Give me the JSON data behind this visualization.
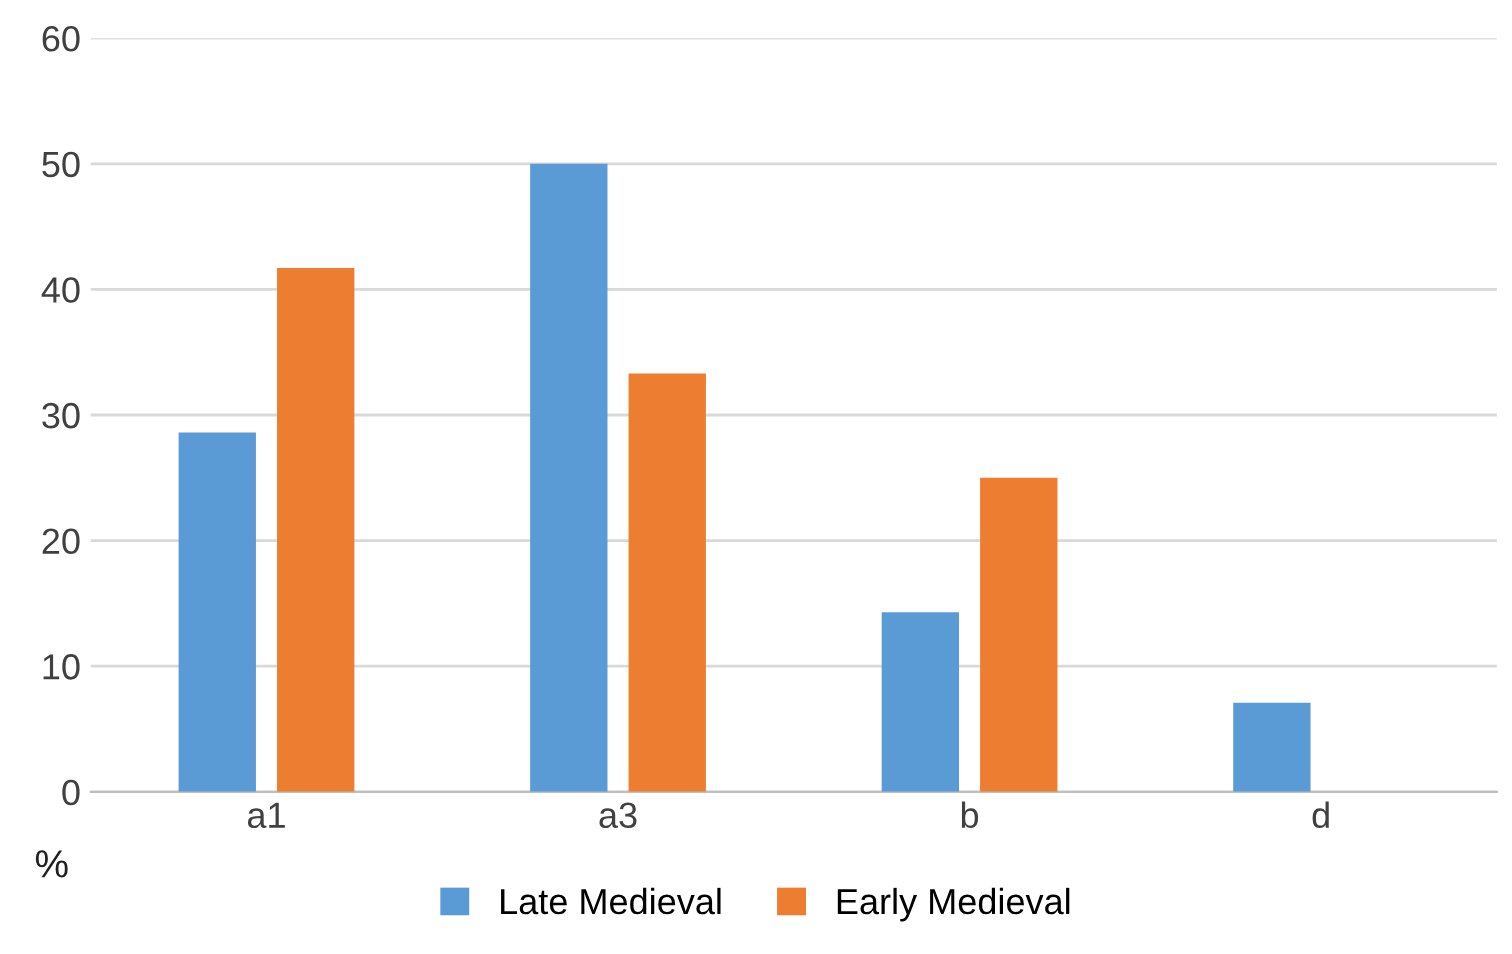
{
  "chart_data": {
    "type": "bar",
    "ylabel": "%",
    "categories": [
      "a1",
      "a3",
      "b",
      "d"
    ],
    "series": [
      {
        "name": "Late Medieval",
        "color": "#5b9bd5",
        "values": [
          28.6,
          50,
          14.3,
          7.1
        ]
      },
      {
        "name": "Early Medieval",
        "color": "#ed7d31",
        "values": [
          41.7,
          33.3,
          25,
          0
        ]
      }
    ],
    "ylim": [
      0,
      60
    ],
    "yticks": [
      0,
      10,
      20,
      30,
      40,
      50,
      60
    ],
    "grid": "y",
    "legend": "bottom"
  }
}
